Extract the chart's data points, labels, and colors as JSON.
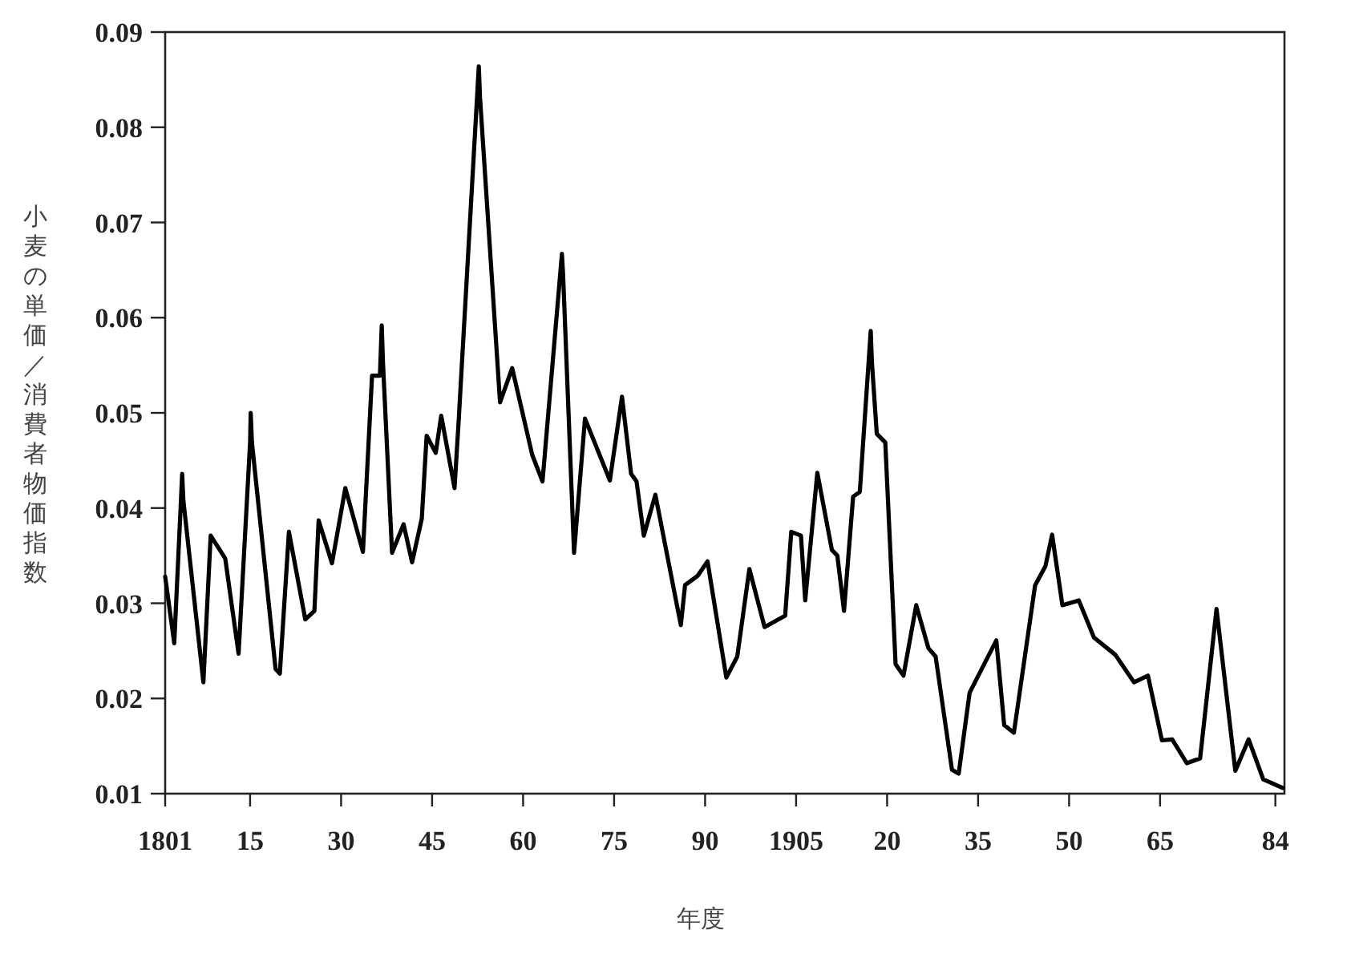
{
  "chart_data": {
    "type": "line",
    "xlabel": "年度",
    "ylabel": "小麦の単価／消費者物価指数",
    "color": "#000000",
    "xlim": [
      1801,
      1985.5
    ],
    "ylim": [
      0.01,
      0.09
    ],
    "xticks": [
      1801,
      {
        "value": 1815,
        "label": "15"
      },
      {
        "value": 1830,
        "label": "30"
      },
      {
        "value": 1845,
        "label": "45"
      },
      {
        "value": 1860,
        "label": "60"
      },
      {
        "value": 1875,
        "label": "75"
      },
      {
        "value": 1890,
        "label": "90"
      },
      1905,
      {
        "value": 1920,
        "label": "20"
      },
      {
        "value": 1935,
        "label": "35"
      },
      {
        "value": 1950,
        "label": "50"
      },
      {
        "value": 1965,
        "label": "65"
      },
      {
        "value": 1984,
        "label": "84"
      }
    ],
    "yticks": [
      {
        "value": 0.01,
        "label": "0.01"
      },
      {
        "value": 0.02,
        "label": "0.02"
      },
      {
        "value": 0.03,
        "label": "0.03"
      },
      {
        "value": 0.04,
        "label": "0.04"
      },
      {
        "value": 0.05,
        "label": "0.05"
      },
      {
        "value": 0.06,
        "label": "0.06"
      },
      {
        "value": 0.07,
        "label": "0.07"
      },
      {
        "value": 0.08,
        "label": "0.08"
      },
      {
        "value": 0.09,
        "label": "0.09"
      }
    ],
    "x": [
      1801,
      1802.5,
      1803.6,
      1803.8,
      1804,
      1807.3,
      1808.5,
      1810.9,
      1813.1,
      1815,
      1815.1,
      1815.3,
      1819.2,
      1819.9,
      1821.4,
      1824.1,
      1825.6,
      1826.3,
      1828.5,
      1830.7,
      1833.6,
      1835.1,
      1836.4,
      1836.7,
      1836.9,
      1838.4,
      1840.3,
      1841.7,
      1843.3,
      1844.1,
      1845.6,
      1846.5,
      1848.7,
      1849.4,
      1852.7,
      1852.9,
      1856.2,
      1858.2,
      1861.5,
      1863.2,
      1866.4,
      1866.6,
      1868.4,
      1870.2,
      1874.3,
      1876.3,
      1877.8,
      1878.7,
      1879.9,
      1881.8,
      1886,
      1886.7,
      1888.8,
      1890.4,
      1893.5,
      1895.3,
      1897.3,
      1899.8,
      1903.2,
      1904.2,
      1905.8,
      1906.5,
      1908.5,
      1910.9,
      1911.8,
      1912.9,
      1914.4,
      1915.5,
      1917.3,
      1917.5,
      1918.3,
      1919.7,
      1921.4,
      1922.7,
      1924.8,
      1926.8,
      1928,
      1930.7,
      1931.8,
      1933.6,
      1938,
      1939.3,
      1940.9,
      1944.4,
      1946.1,
      1947.2,
      1948.9,
      1951.6,
      1954.1,
      1957.6,
      1960.7,
      1963,
      1965.3,
      1967,
      1969.4,
      1971.6,
      1974.3,
      1977.4,
      1979.6,
      1982,
      1985.2
    ],
    "values": [
      0.0328,
      0.0258,
      0.0408,
      0.0436,
      0.0408,
      0.0217,
      0.0371,
      0.0347,
      0.0247,
      0.0469,
      0.05,
      0.0469,
      0.0231,
      0.0226,
      0.0375,
      0.0283,
      0.0292,
      0.0387,
      0.0342,
      0.0421,
      0.0354,
      0.0539,
      0.0539,
      0.0592,
      0.0553,
      0.0353,
      0.0383,
      0.0343,
      0.0389,
      0.0476,
      0.0458,
      0.0497,
      0.0421,
      0.0494,
      0.0864,
      0.0831,
      0.0511,
      0.0547,
      0.0456,
      0.0428,
      0.0667,
      0.0644,
      0.0353,
      0.0494,
      0.0429,
      0.0517,
      0.0436,
      0.0428,
      0.0371,
      0.0414,
      0.0277,
      0.0319,
      0.0329,
      0.0344,
      0.0222,
      0.0244,
      0.0336,
      0.0275,
      0.0287,
      0.0375,
      0.0371,
      0.0303,
      0.0437,
      0.0356,
      0.035,
      0.0292,
      0.0412,
      0.0417,
      0.0586,
      0.0553,
      0.0478,
      0.0469,
      0.0236,
      0.0224,
      0.0298,
      0.0253,
      0.0244,
      0.0125,
      0.0121,
      0.0206,
      0.0261,
      0.0172,
      0.0164,
      0.0319,
      0.0339,
      0.0372,
      0.0298,
      0.0303,
      0.0264,
      0.0246,
      0.0217,
      0.0224,
      0.0156,
      0.0157,
      0.0132,
      0.0137,
      0.0294,
      0.0124,
      0.0157,
      0.0115,
      0.0106
    ]
  }
}
